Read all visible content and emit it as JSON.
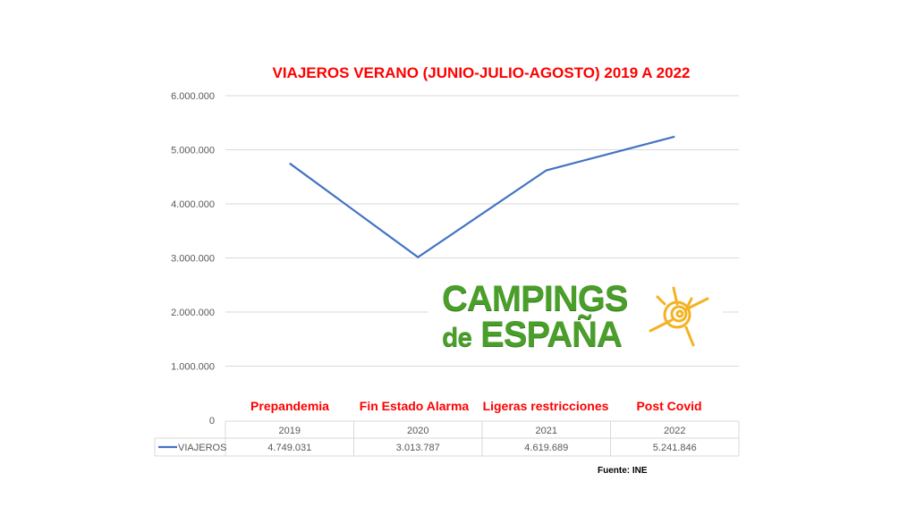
{
  "chart_data": {
    "type": "line",
    "title": "VIAJEROS VERANO (JUNIO-JULIO-AGOSTO) 2019 A 2022",
    "categories": [
      "2019",
      "2020",
      "2021",
      "2022"
    ],
    "phases": [
      "Prepandemia",
      "Fin Estado  Alarma",
      "Ligeras restricciones",
      "Post Covid"
    ],
    "series": [
      {
        "name": "VIAJEROS",
        "values": [
          4749031,
          3013787,
          4619689,
          5241846
        ],
        "labels": [
          "4.749.031",
          "3.013.787",
          "4.619.689",
          "5.241.846"
        ],
        "color": "#4472c4"
      }
    ],
    "ylim": [
      0,
      6000000
    ],
    "yticks": [
      0,
      1000000,
      2000000,
      3000000,
      4000000,
      5000000,
      6000000
    ],
    "ytick_labels": [
      "0",
      "1.000.000",
      "2.000.000",
      "3.000.000",
      "4.000.000",
      "5.000.000",
      "6.000.000"
    ],
    "grid": true,
    "legend": "data-table"
  },
  "source": "Fuente: INE",
  "logo": {
    "line1": "CAMPINGS",
    "line2a": "de",
    "line2b": "ESPAÑA"
  }
}
